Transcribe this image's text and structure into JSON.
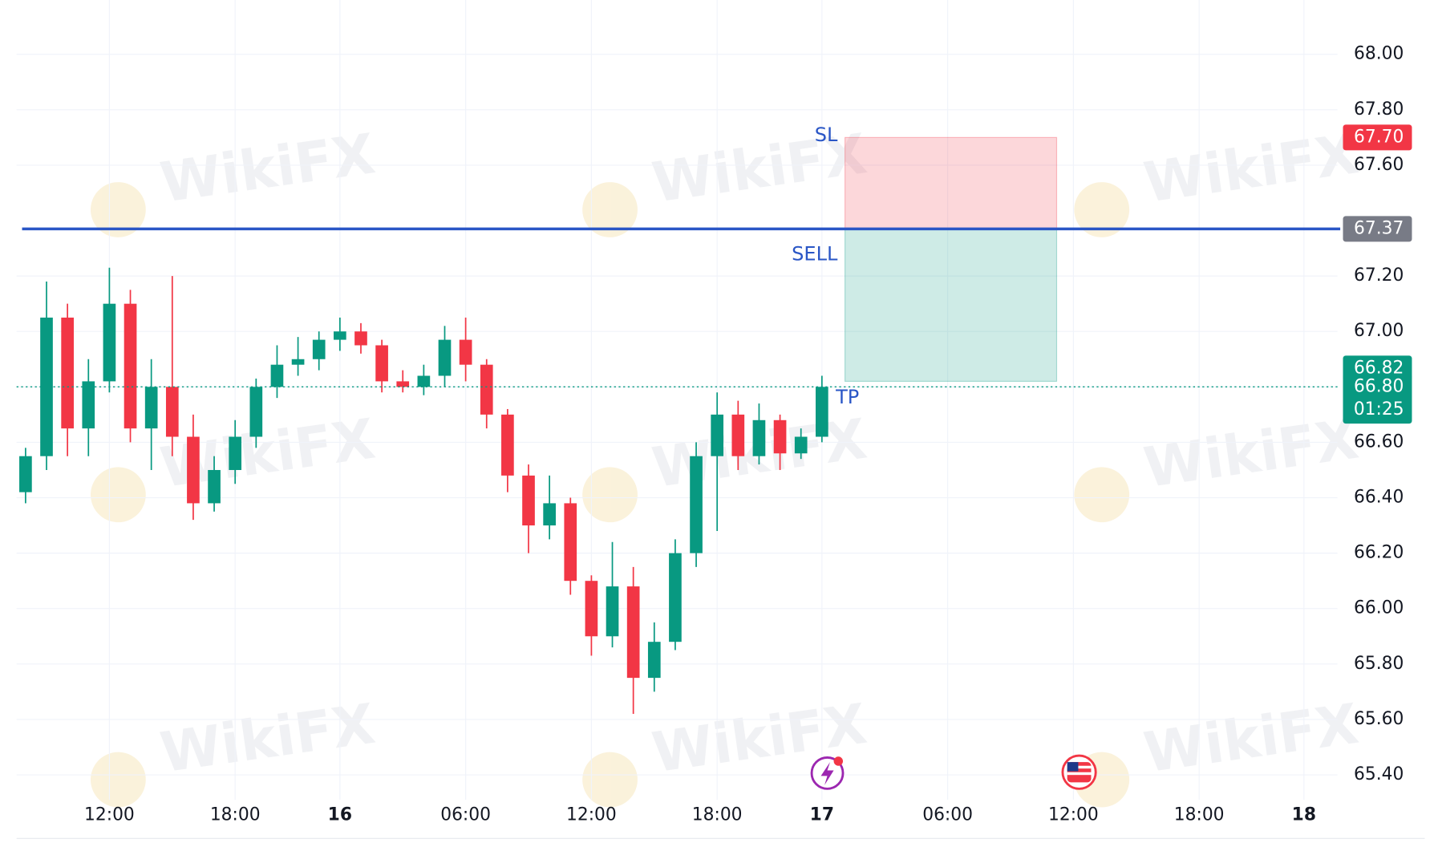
{
  "chart_data": {
    "type": "candlestick",
    "watermark": "WikiFX",
    "x": [
      8,
      9,
      10,
      11,
      12,
      13,
      14,
      15,
      16,
      17,
      18,
      19,
      20,
      21,
      22,
      23,
      24,
      25,
      26,
      27,
      28,
      29,
      30,
      31,
      32,
      33,
      34,
      35,
      36,
      37,
      38,
      39,
      40,
      41,
      42,
      43,
      44,
      45,
      46
    ],
    "open": [
      66.42,
      66.55,
      67.05,
      66.65,
      66.82,
      67.1,
      66.65,
      66.8,
      66.62,
      66.38,
      66.5,
      66.62,
      66.8,
      66.88,
      66.9,
      66.97,
      67.0,
      66.95,
      66.82,
      66.8,
      66.84,
      66.97,
      66.88,
      66.7,
      66.48,
      66.3,
      66.38,
      66.1,
      65.9,
      66.08,
      65.75,
      65.88,
      66.2,
      66.55,
      66.7,
      66.55,
      66.68,
      66.56,
      66.62
    ],
    "high": [
      66.58,
      67.18,
      67.1,
      66.9,
      67.23,
      67.15,
      66.9,
      67.2,
      66.7,
      66.55,
      66.68,
      66.83,
      66.95,
      66.98,
      67.0,
      67.05,
      67.03,
      66.97,
      66.86,
      66.88,
      67.02,
      67.05,
      66.9,
      66.72,
      66.52,
      66.48,
      66.4,
      66.12,
      66.24,
      66.15,
      65.95,
      66.25,
      66.6,
      66.78,
      66.75,
      66.74,
      66.7,
      66.65,
      66.84
    ],
    "low": [
      66.38,
      66.5,
      66.55,
      66.55,
      66.78,
      66.6,
      66.5,
      66.55,
      66.32,
      66.35,
      66.45,
      66.58,
      66.76,
      66.84,
      66.86,
      66.93,
      66.92,
      66.78,
      66.78,
      66.77,
      66.8,
      66.82,
      66.65,
      66.42,
      66.2,
      66.25,
      66.05,
      65.83,
      65.86,
      65.62,
      65.7,
      65.85,
      66.15,
      66.28,
      66.5,
      66.52,
      66.5,
      66.54,
      66.6
    ],
    "close": [
      66.55,
      67.05,
      66.65,
      66.82,
      67.1,
      66.65,
      66.8,
      66.62,
      66.38,
      66.5,
      66.62,
      66.8,
      66.88,
      66.9,
      66.97,
      67.0,
      66.95,
      66.82,
      66.8,
      66.84,
      66.97,
      66.88,
      66.7,
      66.48,
      66.3,
      66.38,
      66.1,
      65.9,
      66.08,
      65.75,
      65.88,
      66.2,
      66.55,
      66.7,
      66.55,
      66.68,
      66.56,
      66.62,
      66.8
    ],
    "up_color": "#089981",
    "down_color": "#f23645",
    "xlim": [
      7.57,
      70.6
    ],
    "xticks": [
      {
        "value": 12,
        "label": "12:00"
      },
      {
        "value": 18,
        "label": "18:00"
      },
      {
        "value": 23,
        "label": "16"
      },
      {
        "value": 29,
        "label": "06:00"
      },
      {
        "value": 35,
        "label": "12:00"
      },
      {
        "value": 41,
        "label": "18:00"
      },
      {
        "value": 46,
        "label": "17"
      },
      {
        "value": 52,
        "label": "06:00"
      },
      {
        "value": 58,
        "label": "12:00"
      },
      {
        "value": 64,
        "label": "18:00"
      },
      {
        "value": 69,
        "label": "18"
      }
    ],
    "ylim": [
      65.31,
      68.196
    ],
    "yticks": [
      {
        "value": 65.4,
        "label": "65.40"
      },
      {
        "value": 65.6,
        "label": "65.60"
      },
      {
        "value": 65.8,
        "label": "65.80"
      },
      {
        "value": 66.0,
        "label": "66.00"
      },
      {
        "value": 66.2,
        "label": "66.20"
      },
      {
        "value": 66.4,
        "label": "66.40"
      },
      {
        "value": 66.6,
        "label": "66.60"
      },
      {
        "value": 66.8,
        "label": "66.80"
      },
      {
        "value": 67.0,
        "label": "67.00"
      },
      {
        "value": 67.2,
        "label": "67.20"
      },
      {
        "value": 67.6,
        "label": "67.60"
      },
      {
        "value": 67.8,
        "label": "67.80"
      },
      {
        "value": 68.0,
        "label": "68.00"
      }
    ],
    "grid": true,
    "position": {
      "start_x": 47.1,
      "end_x": 57.2,
      "entry": 67.37,
      "entry_label": "SELL",
      "entry_color": "#2a56c6",
      "stop_loss": {
        "value": 67.7,
        "label": "67.70"
      },
      "stop_loss_label": "SL",
      "take_profit": 66.82,
      "take_profit_label": "TP"
    },
    "last_price": {
      "value": 66.8,
      "label": "66.80"
    },
    "countdown": "01:25"
  }
}
